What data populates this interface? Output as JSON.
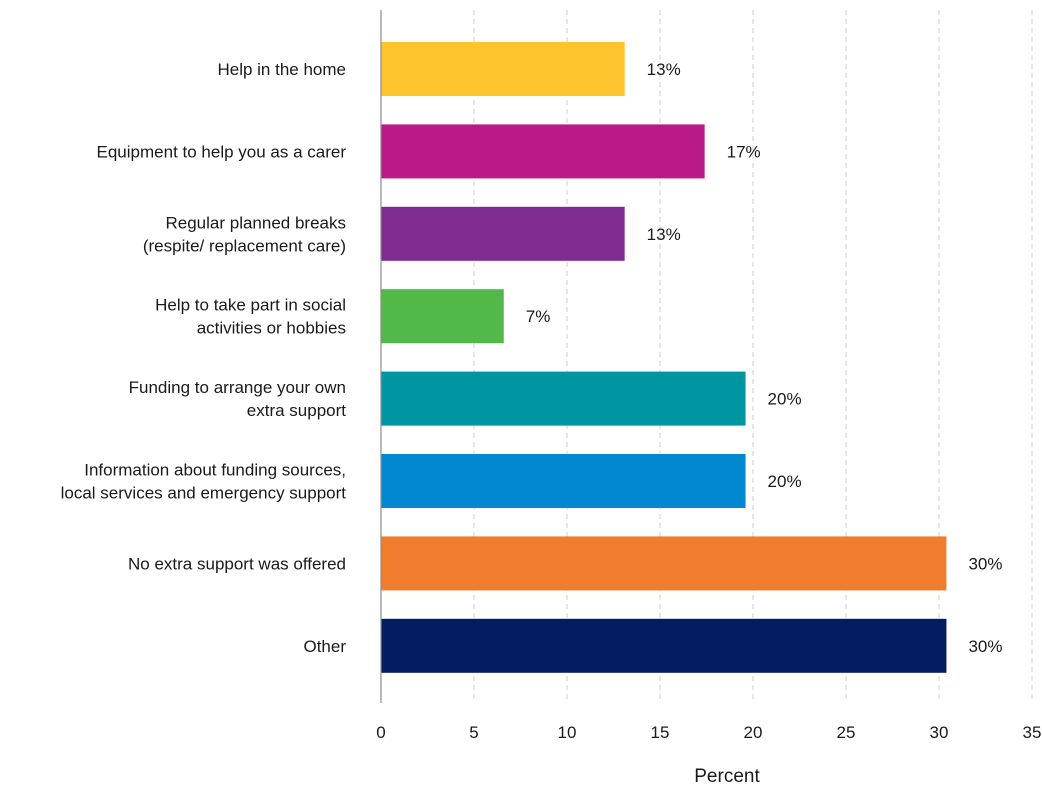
{
  "chart_data": {
    "type": "bar",
    "orientation": "horizontal",
    "categories": [
      [
        "Help in the home"
      ],
      [
        "Equipment to help you as a carer"
      ],
      [
        "Regular planned breaks",
        "(respite/ replacement care)"
      ],
      [
        "Help to take part in social",
        "activities or hobbies"
      ],
      [
        "Funding to arrange your own",
        "extra support"
      ],
      [
        "Information about funding sources,",
        "local services and emergency support"
      ],
      [
        "No extra support was offered"
      ],
      [
        "Other"
      ]
    ],
    "values": [
      13.1,
      17.4,
      13.1,
      6.6,
      19.6,
      19.6,
      30.4,
      30.4
    ],
    "data_labels": [
      "13%",
      "17%",
      "13%",
      "7%",
      "20%",
      "20%",
      "30%",
      "30%"
    ],
    "colors": [
      "#FFC52E",
      "#BA1A86",
      "#7F2B8F",
      "#52B84A",
      "#0096A1",
      "#0288D1",
      "#F07C2D",
      "#031D60"
    ],
    "xlim": [
      0,
      35
    ],
    "xticks": [
      "0",
      "5",
      "10",
      "15",
      "20",
      "25",
      "30",
      "35"
    ],
    "xtick_values": [
      0,
      5,
      10,
      15,
      20,
      25,
      30,
      35
    ],
    "xlabel": "Percent",
    "ylabel": "",
    "title": "",
    "grid": "vertical dashed"
  }
}
